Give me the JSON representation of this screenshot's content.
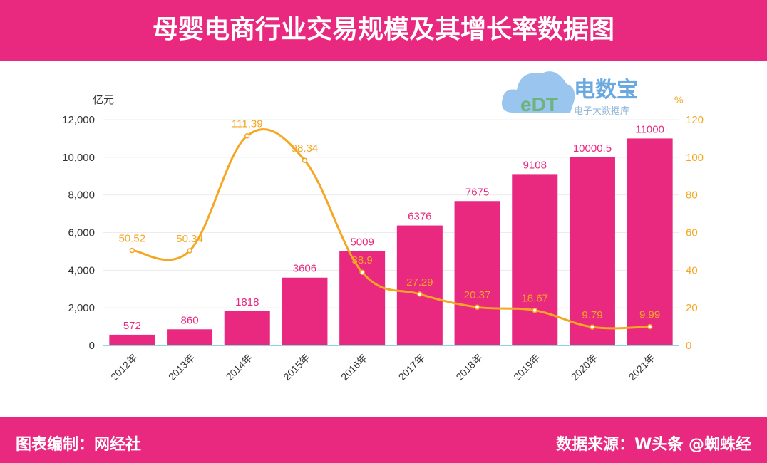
{
  "header": {
    "title": "母婴电商行业交易规模及其增长率数据图"
  },
  "footer": {
    "left": "图表编制：网经社",
    "right": "数据来源：W头条 @蜘蛛经"
  },
  "logo": {
    "text": "电数宝",
    "sub": "电子大数据库",
    "mark": "eDT"
  },
  "colors": {
    "bar": "#e8297f",
    "line": "#f5a623",
    "header": "#e8297f"
  },
  "chart_data": {
    "type": "bar+line",
    "categories": [
      "2012年",
      "2013年",
      "2014年",
      "2015年",
      "2016年",
      "2017年",
      "2018年",
      "2019年",
      "2020年",
      "2021年"
    ],
    "series": [
      {
        "type": "bar",
        "axis": "left",
        "values": [
          572,
          860,
          1818,
          3606,
          5009,
          6376,
          7675,
          9108,
          10000.5,
          11000
        ],
        "labels": [
          "572",
          "860",
          "1818",
          "3606",
          "5009",
          "6376",
          "7675",
          "9108",
          "10000.5",
          "11000"
        ]
      },
      {
        "type": "line",
        "axis": "right",
        "values": [
          50.52,
          50.34,
          111.39,
          98.34,
          38.9,
          27.29,
          20.37,
          18.67,
          9.79,
          9.99
        ],
        "labels": [
          "50.52",
          "50.34",
          "111.39",
          "98.34",
          "38.9",
          "27.29",
          "20.37",
          "18.67",
          "9.79",
          "9.99"
        ]
      }
    ],
    "y_left": {
      "label": "亿元",
      "range": [
        0,
        12000
      ],
      "ticks": [
        "0",
        "2,000",
        "4,000",
        "6,000",
        "8,000",
        "10,000",
        "12,000"
      ]
    },
    "y_right": {
      "label": "%",
      "range": [
        0,
        120
      ],
      "ticks": [
        "0",
        "20",
        "40",
        "60",
        "80",
        "100",
        "120"
      ]
    },
    "grid": true
  }
}
